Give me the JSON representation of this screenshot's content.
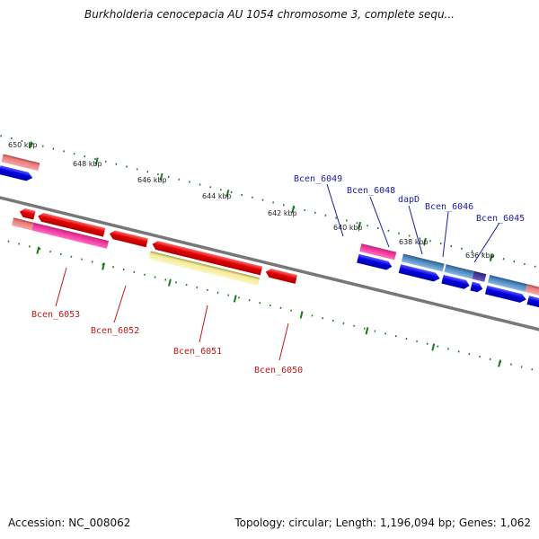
{
  "title": "Burkholderia cenocepacia AU 1054 chromosome 3, complete sequ...",
  "footer": {
    "accession": "Accession: NC_008062",
    "summary": "Topology: circular; Length: 1,196,094 bp; Genes: 1,062"
  },
  "colors": {
    "backbone": "#777777",
    "cds_forward": "#0000e0",
    "cds_reverse": "#e00000",
    "tick": "#1a7a1a",
    "pink": "#ee2f9c",
    "salmon": "#ec7a7a",
    "steel": "#4a87bf",
    "pale_yellow": "#f2eb9a",
    "lavender": "#7d6fd6"
  },
  "ruler_labels": [
    "650 kbp",
    "648 kbp",
    "646 kbp",
    "644 kbp",
    "642 kbp",
    "640 kbp",
    "638 kbp",
    "636 kbp"
  ],
  "gene_labels_forward": [
    "Bcen_6049",
    "Bcen_6048",
    "dapD",
    "Bcen_6046",
    "Bcen_6045"
  ],
  "gene_labels_reverse": [
    "Bcen_6053",
    "Bcen_6052",
    "Bcen_6051",
    "Bcen_6050"
  ]
}
